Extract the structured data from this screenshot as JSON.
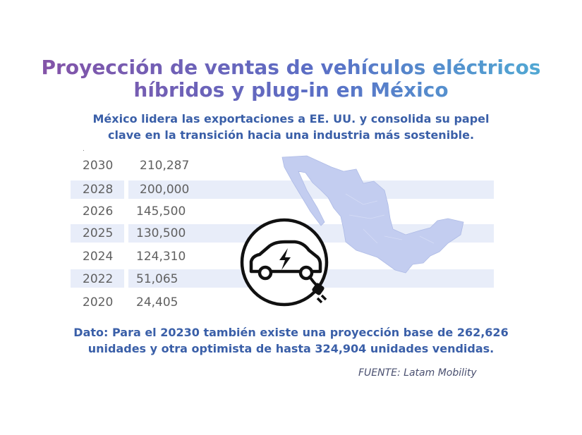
{
  "chart_data": {
    "type": "table",
    "title_line1": "Proyección de ventas de vehículos eléctricos",
    "title_line2": "híbridos y plug-in en México",
    "subtitle_line1": "México lidera las exportaciones a EE. UU. y consolida su papel",
    "subtitle_line2": "clave en la transición hacia una industria más sostenible.",
    "rows": [
      {
        "year": "2030",
        "value": "210,287"
      },
      {
        "year": "2028",
        "value": "200,000"
      },
      {
        "year": "2026",
        "value": "145,500"
      },
      {
        "year": "2025",
        "value": "130,500"
      },
      {
        "year": "2024",
        "value": "124,310"
      },
      {
        "year": "2022",
        "value": "51,065"
      },
      {
        "year": "2020",
        "value": "24,405"
      }
    ],
    "note_line1": "Dato: Para el 20230 también existe una proyección base de 262,626",
    "note_line2": "unidades y otra optimista de hasta 324,904 unidades vendidas.",
    "source": "FUENTE: Latam Mobility",
    "colors": {
      "title_start": "#8a4fa3",
      "title_end": "#4fb3d6",
      "accent": "#3a5fa8",
      "stripe": "#e8edf9",
      "map": "#c3cdf0"
    },
    "icons": [
      "mexico-map-icon",
      "electric-car-plug-icon"
    ]
  }
}
